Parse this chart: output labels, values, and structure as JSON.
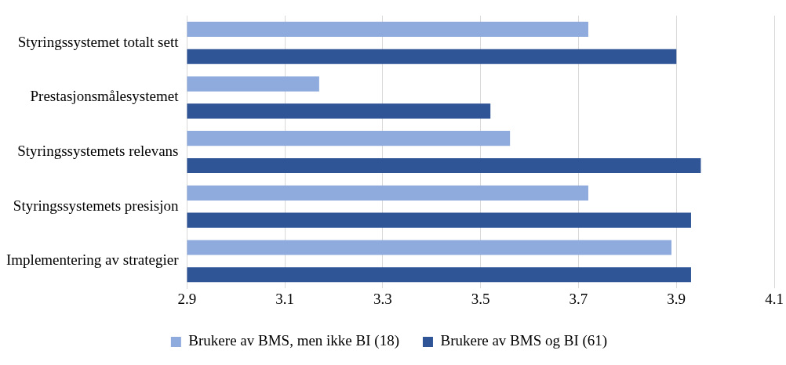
{
  "chart_data": {
    "type": "bar",
    "orientation": "horizontal",
    "categories": [
      "Styringssystemet totalt sett",
      "Prestasjonsmålesystemet",
      "Styringssystemets relevans",
      "Styringssystemets presisjon",
      "Implementering av strategier"
    ],
    "series": [
      {
        "name": "Brukere av BMS, men ikke BI (18)",
        "color": "#8faadc",
        "values": [
          3.72,
          3.17,
          3.56,
          3.72,
          3.89
        ]
      },
      {
        "name": "Brukere av BMS og BI (61)",
        "color": "#2f5597",
        "values": [
          3.9,
          3.52,
          3.95,
          3.93,
          3.93
        ]
      }
    ],
    "xlim": [
      2.9,
      4.1
    ],
    "xticks": [
      2.9,
      3.1,
      3.3,
      3.5,
      3.7,
      3.9,
      4.1
    ],
    "grid": "x",
    "legend": "bottom"
  }
}
